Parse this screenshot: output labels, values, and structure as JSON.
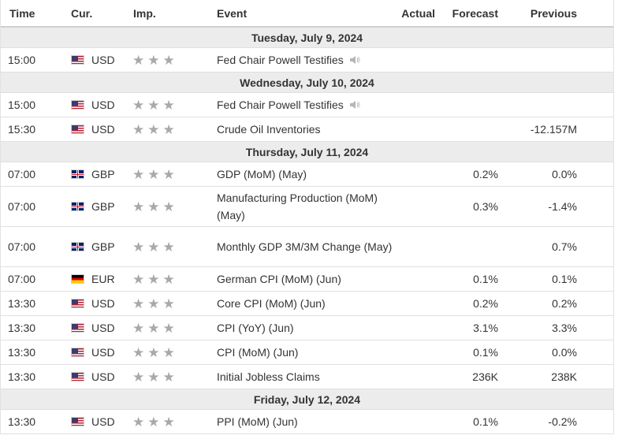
{
  "header": {
    "time": "Time",
    "currency": "Cur.",
    "importance": "Imp.",
    "event": "Event",
    "actual": "Actual",
    "forecast": "Forecast",
    "previous": "Previous"
  },
  "days": [
    {
      "label": "Tuesday, July 9, 2024",
      "events": [
        {
          "time": "15:00",
          "flag": "us",
          "currency": "USD",
          "stars": 3,
          "event": "Fed Chair Powell Testifies",
          "speech": true,
          "actual": "",
          "forecast": "",
          "previous": ""
        }
      ]
    },
    {
      "label": "Wednesday, July 10, 2024",
      "events": [
        {
          "time": "15:00",
          "flag": "us",
          "currency": "USD",
          "stars": 3,
          "event": "Fed Chair Powell Testifies",
          "speech": true,
          "actual": "",
          "forecast": "",
          "previous": ""
        },
        {
          "time": "15:30",
          "flag": "us",
          "currency": "USD",
          "stars": 3,
          "event": "Crude Oil Inventories",
          "speech": false,
          "actual": "",
          "forecast": "",
          "previous": "-12.157M"
        }
      ]
    },
    {
      "label": "Thursday, July 11, 2024",
      "events": [
        {
          "time": "07:00",
          "flag": "gb",
          "currency": "GBP",
          "stars": 3,
          "event": "GDP (MoM) (May)",
          "speech": false,
          "actual": "",
          "forecast": "0.2%",
          "previous": "0.0%"
        },
        {
          "time": "07:00",
          "flag": "gb",
          "currency": "GBP",
          "stars": 3,
          "event": "Manufacturing Production (MoM) (May)",
          "speech": false,
          "tall": true,
          "actual": "",
          "forecast": "0.3%",
          "previous": "-1.4%"
        },
        {
          "time": "07:00",
          "flag": "gb",
          "currency": "GBP",
          "stars": 3,
          "event": "Monthly GDP 3M/3M Change (May)",
          "speech": false,
          "tall": true,
          "actual": "",
          "forecast": "",
          "previous": "0.7%"
        },
        {
          "time": "07:00",
          "flag": "de",
          "currency": "EUR",
          "stars": 3,
          "event": "German CPI (MoM) (Jun)",
          "speech": false,
          "actual": "",
          "forecast": "0.1%",
          "previous": "0.1%"
        },
        {
          "time": "13:30",
          "flag": "us",
          "currency": "USD",
          "stars": 3,
          "event": "Core CPI (MoM) (Jun)",
          "speech": false,
          "actual": "",
          "forecast": "0.2%",
          "previous": "0.2%"
        },
        {
          "time": "13:30",
          "flag": "us",
          "currency": "USD",
          "stars": 3,
          "event": "CPI (YoY) (Jun)",
          "speech": false,
          "actual": "",
          "forecast": "3.1%",
          "previous": "3.3%"
        },
        {
          "time": "13:30",
          "flag": "us",
          "currency": "USD",
          "stars": 3,
          "event": "CPI (MoM) (Jun)",
          "speech": false,
          "actual": "",
          "forecast": "0.1%",
          "previous": "0.0%"
        },
        {
          "time": "13:30",
          "flag": "us",
          "currency": "USD",
          "stars": 3,
          "event": "Initial Jobless Claims",
          "speech": false,
          "actual": "",
          "forecast": "236K",
          "previous": "238K"
        }
      ]
    },
    {
      "label": "Friday, July 12, 2024",
      "events": [
        {
          "time": "13:30",
          "flag": "us",
          "currency": "USD",
          "stars": 3,
          "event": "PPI (MoM) (Jun)",
          "speech": false,
          "actual": "",
          "forecast": "0.1%",
          "previous": "-0.2%"
        }
      ]
    }
  ],
  "colors": {
    "day_row_bg": "#ececec",
    "star": "#a9a9a9",
    "border": "#e0e0e0"
  }
}
